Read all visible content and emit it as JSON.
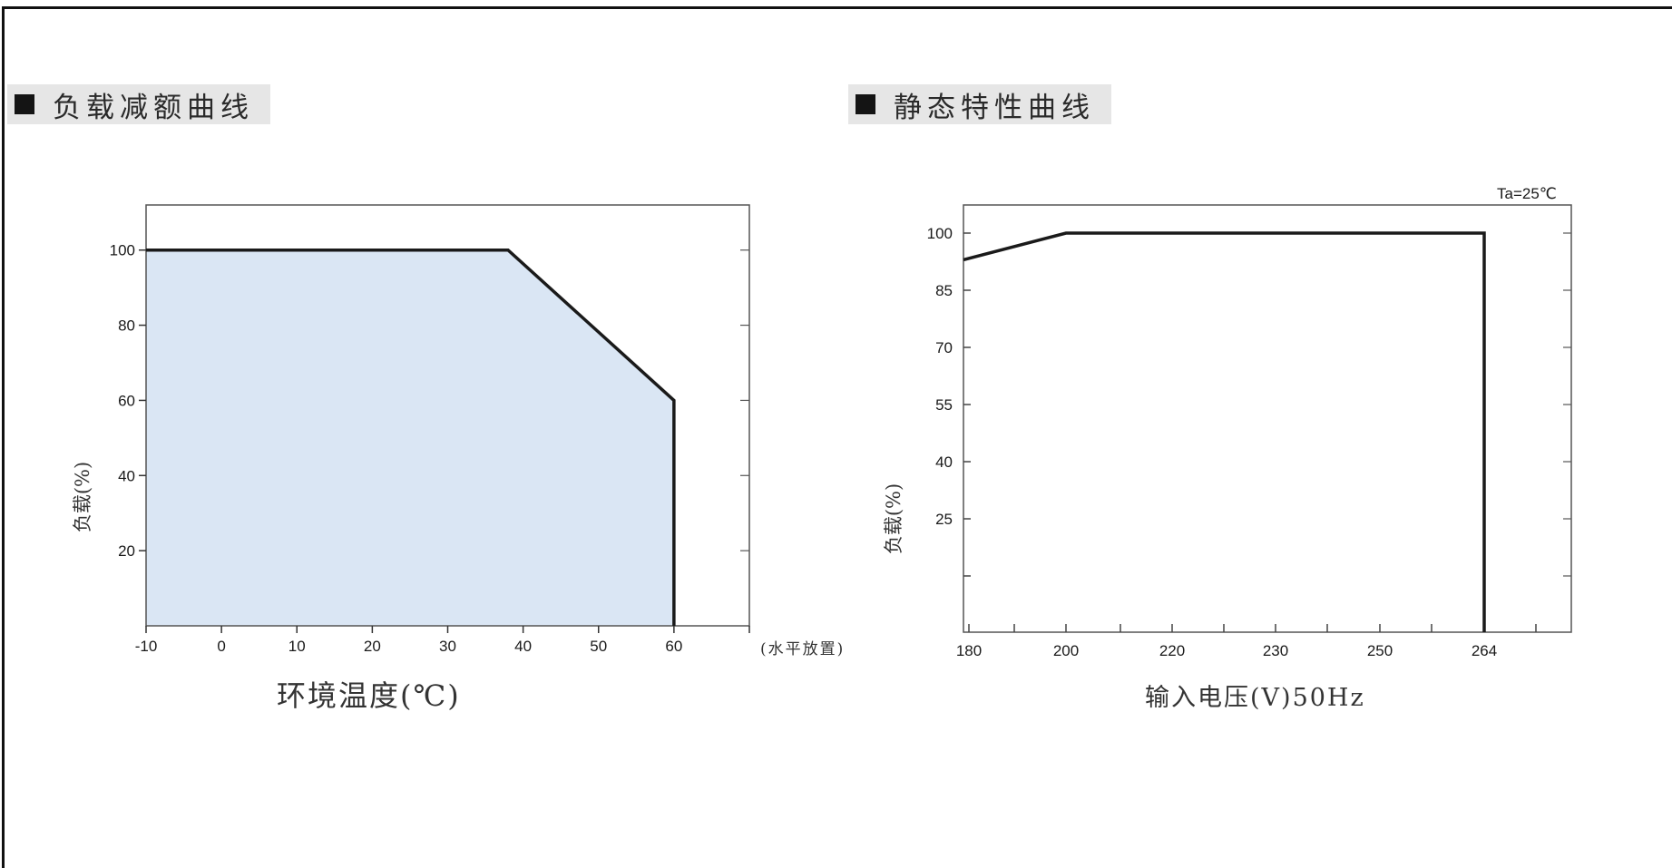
{
  "headers": {
    "left": "负载减额曲线",
    "right": "静态特性曲线"
  },
  "chart_data": [
    {
      "type": "area",
      "title": "负载减额曲线",
      "xlabel": "环境温度(℃)",
      "ylabel": "负载(%)",
      "note": "(水平放置)",
      "x_ticks": [
        "-10",
        "0",
        "10",
        "20",
        "30",
        "40",
        "50",
        "60"
      ],
      "y_ticks": [
        "20",
        "40",
        "60",
        "80",
        "100"
      ],
      "xlim": [
        -10,
        70
      ],
      "ylim": [
        0,
        112
      ],
      "series": [
        {
          "x": [
            -10,
            38,
            60,
            60
          ],
          "y": [
            100,
            100,
            60,
            0
          ]
        }
      ],
      "fill_color": "#dae6f4",
      "line_color": "#1a1a1a"
    },
    {
      "type": "line",
      "title": "静态特性曲线",
      "xlabel": "输入电压(V)50Hz",
      "ylabel": "负载(%)",
      "condition": "Ta=25℃",
      "x_ticks": [
        "180",
        "200",
        "220",
        "230",
        "250",
        "264"
      ],
      "y_ticks": [
        "25",
        "40",
        "55",
        "70",
        "85",
        "100"
      ],
      "series": [
        {
          "x": [
            180,
            200,
            264,
            264
          ],
          "y": [
            93,
            100,
            100,
            0
          ]
        }
      ],
      "line_color": "#1a1a1a"
    }
  ]
}
